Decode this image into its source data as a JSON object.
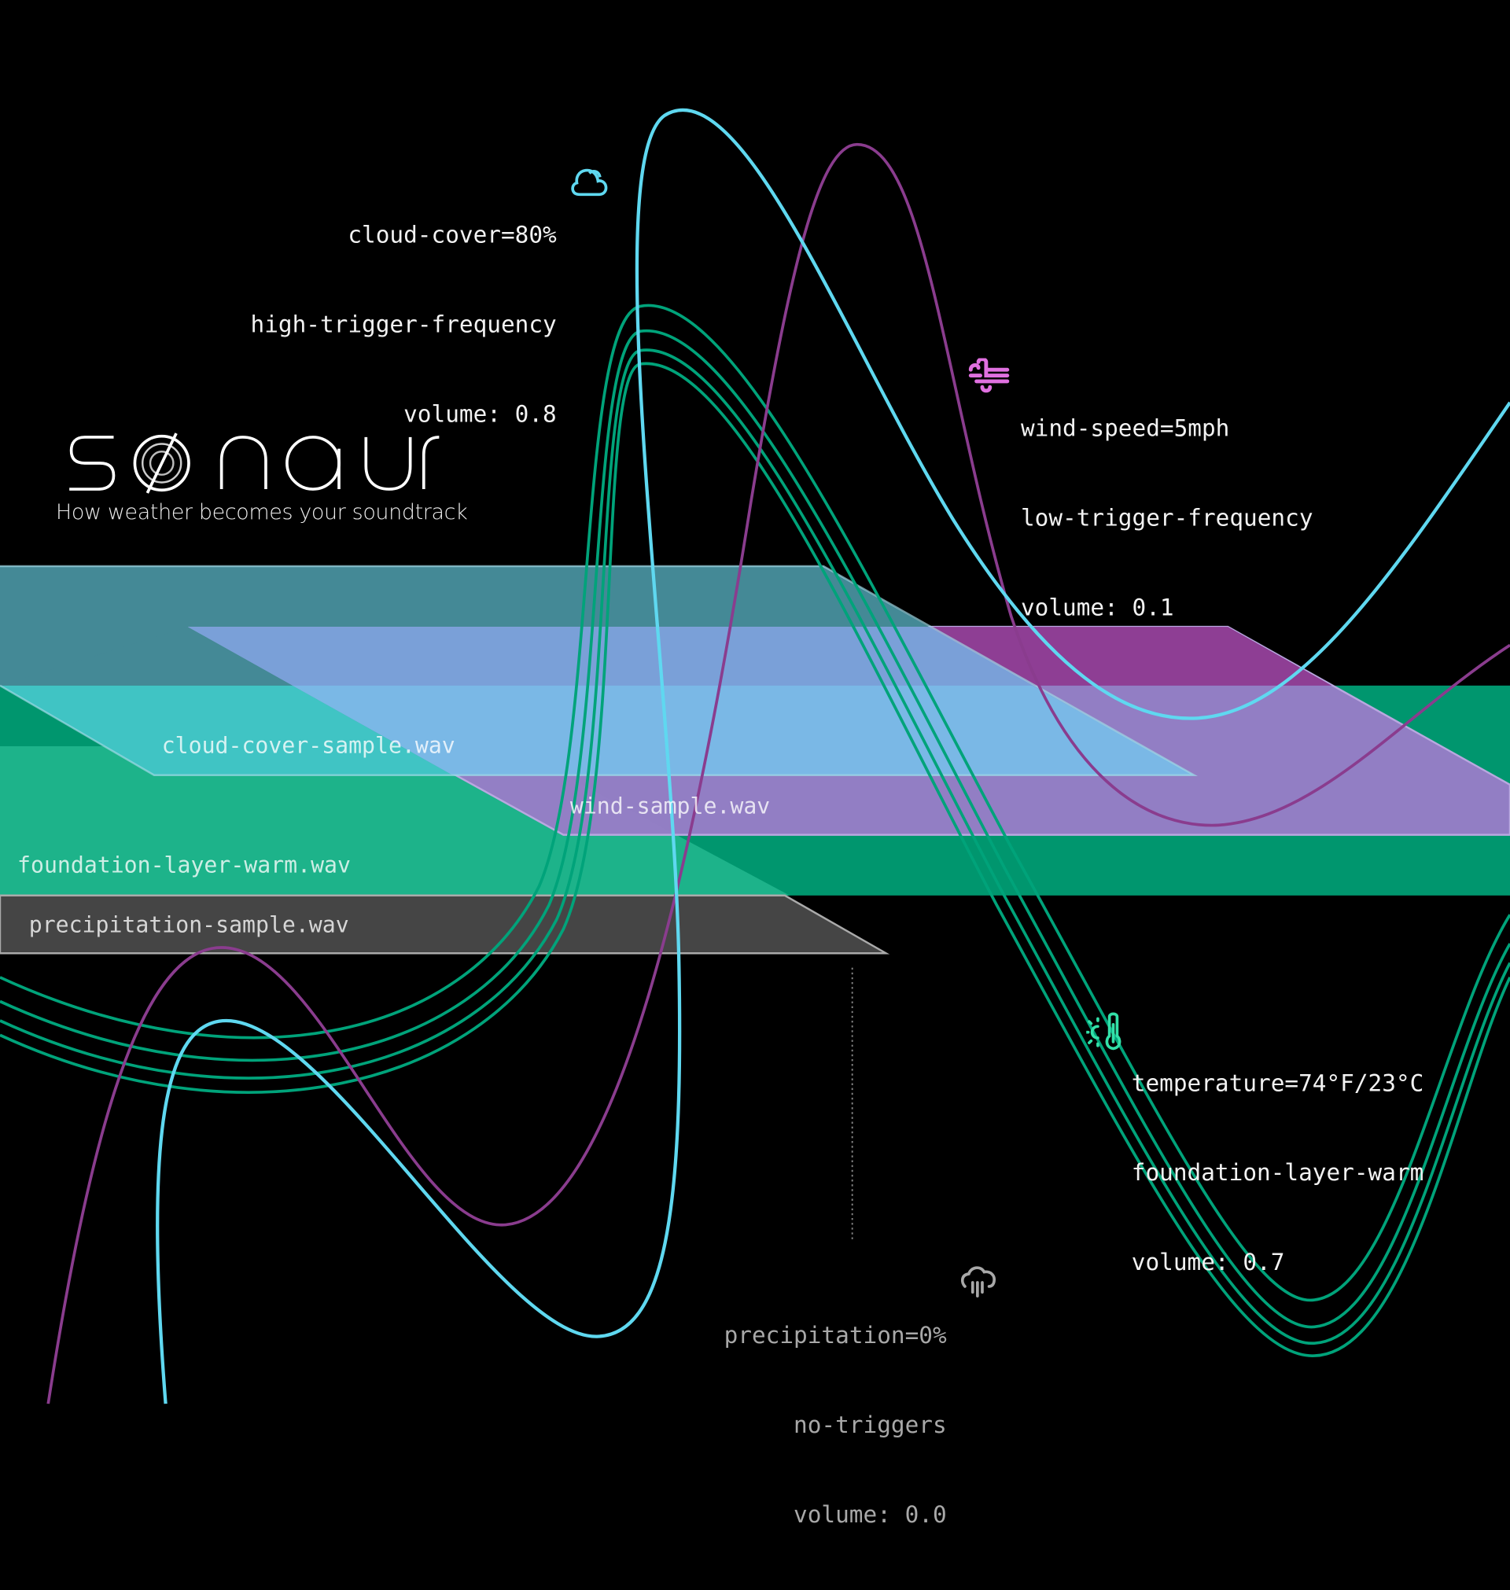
{
  "logo": {
    "text": "sonaur",
    "tagline": "How weather becomes your soundtrack"
  },
  "colors": {
    "cloud": "#5fd8f0",
    "wind": "#9b3f9b",
    "temperature": "#00a37a",
    "precipitation": "#9a9a9a",
    "wind_icon": "#e070e0",
    "temp_icon": "#33e0a8"
  },
  "layers": {
    "cloud": "cloud-cover-sample.wav",
    "wind": "wind-sample.wav",
    "foundation": "foundation-layer-warm.wav",
    "precipitation": "precipitation-sample.wav"
  },
  "annotations": {
    "cloud": {
      "icon": "cloud-icon",
      "lines": [
        "cloud-cover=80%",
        "high-trigger-frequency",
        "volume: 0.8"
      ]
    },
    "wind": {
      "icon": "wind-icon",
      "lines": [
        "wind-speed=5mph",
        "low-trigger-frequency",
        "volume: 0.1"
      ]
    },
    "temperature": {
      "icon": "thermometer-sun-icon",
      "lines": [
        "temperature=74°F/23°C",
        "foundation-layer-warm",
        "volume: 0.7"
      ]
    },
    "precipitation": {
      "icon": "rain-cloud-icon",
      "lines": [
        "precipitation=0%",
        "no-triggers",
        "volume: 0.0"
      ]
    }
  }
}
